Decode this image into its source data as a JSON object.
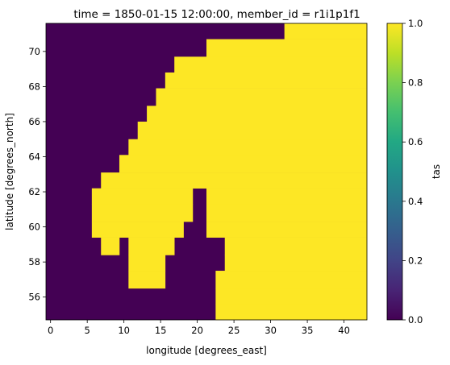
{
  "chart_data": {
    "type": "heatmap",
    "title": "time = 1850-01-15 12:00:00, member_id = r1i1p1f1",
    "xlabel": "longitude [degrees_east]",
    "ylabel": "latitude [degrees_north]",
    "xlim": [
      -0.625,
      43.125
    ],
    "ylim": [
      54.7,
      71.6
    ],
    "xticks": [
      "0",
      "5",
      "10",
      "15",
      "20",
      "25",
      "30",
      "35",
      "40"
    ],
    "yticks": [
      "56",
      "58",
      "60",
      "62",
      "64",
      "66",
      "68",
      "70"
    ],
    "grid": false,
    "colorbar": {
      "label": "tas",
      "range": [
        0.0,
        1.0
      ],
      "ticks": [
        "0.0",
        "0.2",
        "0.4",
        "0.6",
        "0.8",
        "1.0"
      ],
      "colormap": "viridis",
      "low_color": "#440154",
      "high_color": "#fde725"
    },
    "grid_spec": {
      "lon_start": 0.0,
      "lon_step": 1.25,
      "n_lon": 35,
      "lat_edges": [
        54.7,
        55.6,
        56.5,
        57.5,
        58.4,
        59.4,
        60.3,
        61.3,
        62.2,
        63.1,
        64.1,
        65.0,
        66.0,
        66.9,
        67.9,
        68.8,
        69.7,
        70.7,
        71.6
      ]
    },
    "rows": [
      {
        "lat_bottom": 54.7,
        "lat_top": 55.6,
        "value_one_lon_ranges": [
          [
            22.5,
            43.125
          ]
        ]
      },
      {
        "lat_bottom": 55.6,
        "lat_top": 56.5,
        "value_one_lon_ranges": [
          [
            22.5,
            43.125
          ]
        ]
      },
      {
        "lat_bottom": 56.5,
        "lat_top": 57.5,
        "value_one_lon_ranges": [
          [
            10.625,
            15.625
          ],
          [
            22.5,
            43.125
          ]
        ]
      },
      {
        "lat_bottom": 57.5,
        "lat_top": 58.4,
        "value_one_lon_ranges": [
          [
            10.625,
            15.625
          ],
          [
            23.75,
            43.125
          ]
        ]
      },
      {
        "lat_bottom": 58.4,
        "lat_top": 59.4,
        "value_one_lon_ranges": [
          [
            6.875,
            9.375
          ],
          [
            10.625,
            16.875
          ],
          [
            23.75,
            43.125
          ]
        ]
      },
      {
        "lat_bottom": 59.4,
        "lat_top": 60.3,
        "value_one_lon_ranges": [
          [
            5.625,
            18.125
          ],
          [
            21.25,
            43.125
          ]
        ]
      },
      {
        "lat_bottom": 60.3,
        "lat_top": 61.3,
        "value_one_lon_ranges": [
          [
            5.625,
            19.375
          ],
          [
            21.25,
            43.125
          ]
        ]
      },
      {
        "lat_bottom": 61.3,
        "lat_top": 62.2,
        "value_one_lon_ranges": [
          [
            5.625,
            19.375
          ],
          [
            21.25,
            43.125
          ]
        ]
      },
      {
        "lat_bottom": 62.2,
        "lat_top": 63.1,
        "value_one_lon_ranges": [
          [
            6.875,
            43.125
          ]
        ]
      },
      {
        "lat_bottom": 63.1,
        "lat_top": 64.1,
        "value_one_lon_ranges": [
          [
            9.375,
            43.125
          ]
        ]
      },
      {
        "lat_bottom": 64.1,
        "lat_top": 65.0,
        "value_one_lon_ranges": [
          [
            10.625,
            43.125
          ]
        ]
      },
      {
        "lat_bottom": 65.0,
        "lat_top": 66.0,
        "value_one_lon_ranges": [
          [
            11.875,
            43.125
          ]
        ]
      },
      {
        "lat_bottom": 66.0,
        "lat_top": 66.9,
        "value_one_lon_ranges": [
          [
            13.125,
            43.125
          ]
        ]
      },
      {
        "lat_bottom": 66.9,
        "lat_top": 67.9,
        "value_one_lon_ranges": [
          [
            14.375,
            43.125
          ]
        ]
      },
      {
        "lat_bottom": 67.9,
        "lat_top": 68.8,
        "value_one_lon_ranges": [
          [
            15.625,
            43.125
          ]
        ]
      },
      {
        "lat_bottom": 68.8,
        "lat_top": 69.7,
        "value_one_lon_ranges": [
          [
            16.875,
            43.125
          ]
        ]
      },
      {
        "lat_bottom": 69.7,
        "lat_top": 70.7,
        "value_one_lon_ranges": [
          [
            21.25,
            43.125
          ]
        ]
      },
      {
        "lat_bottom": 70.7,
        "lat_top": 71.6,
        "value_one_lon_ranges": [
          [
            31.875,
            43.125
          ]
        ]
      }
    ]
  }
}
